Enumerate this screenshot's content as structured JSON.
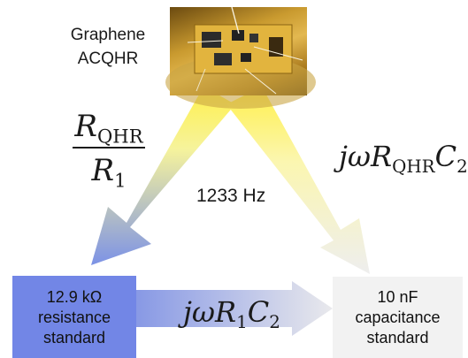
{
  "device": {
    "label_line1": "Graphene",
    "label_line2": "ACQHR"
  },
  "frequency": "1233 Hz",
  "left_arrow_math": {
    "num_symbol": "R",
    "num_sub": "QHR",
    "den_symbol": "R",
    "den_sub": "1"
  },
  "right_arrow_math": {
    "prefix": "jω",
    "symbol": "R",
    "sub": "QHR",
    "symbol2": "C",
    "sub2": "2"
  },
  "bottom_arrow_math": {
    "prefix": "jω",
    "symbol": "R",
    "sub": "1",
    "symbol2": "C",
    "sub2": "2"
  },
  "resistance_standard": {
    "line1": "12.9 kΩ",
    "line2": "resistance",
    "line3": "standard"
  },
  "capacitance_standard": {
    "line1": "10 nF",
    "line2": "capacitance",
    "line3": "standard"
  },
  "colors": {
    "yellow": "#fff26a",
    "blue": "#6f86e3",
    "gray": "#ececec",
    "box_blue": "#7286e6",
    "box_gray": "#f2f2f2"
  }
}
